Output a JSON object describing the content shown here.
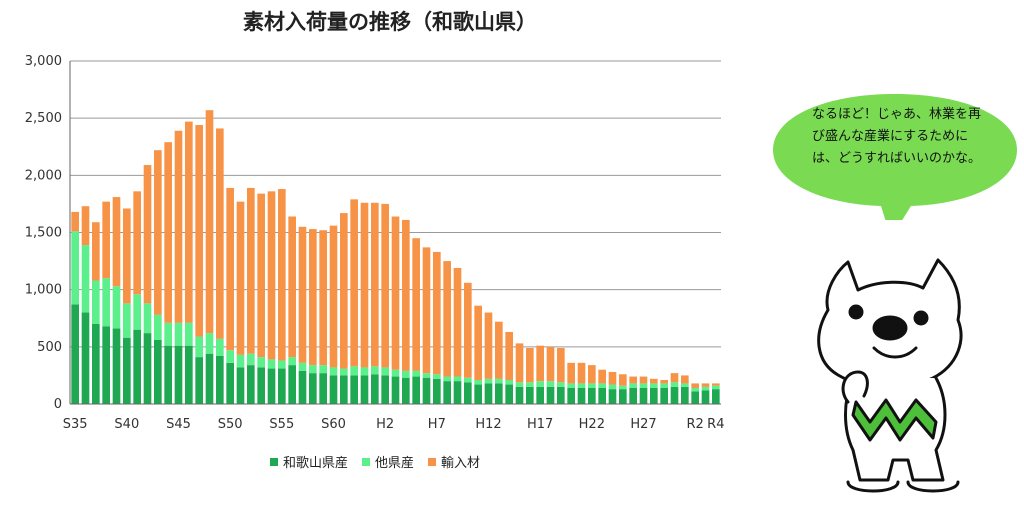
{
  "title": "素材入荷量の推移（和歌山県）",
  "colors": {
    "wakayama": "#1DA851",
    "other": "#5BF08C",
    "import": "#F79347",
    "bubble": "#7ADB53"
  },
  "speech": "なるほど！じゃあ、林業を再び盛んな産業にするためには、どうすればいいのかな。",
  "chart_data": {
    "type": "bar",
    "stacked": true,
    "title": "素材入荷量の推移（和歌山県）",
    "xlabel": "",
    "ylabel": "",
    "ylim": [
      0,
      3000
    ],
    "yticks": [
      0,
      500,
      1000,
      1500,
      2000,
      2500,
      3000
    ],
    "ytick_labels": [
      "0",
      "500",
      "1,000",
      "1,500",
      "2,000",
      "2,500",
      "3,000"
    ],
    "grid": true,
    "legend_position": "bottom",
    "categories": [
      "S35",
      "S36",
      "S37",
      "S38",
      "S39",
      "S40",
      "S41",
      "S42",
      "S43",
      "S44",
      "S45",
      "S46",
      "S47",
      "S48",
      "S49",
      "S50",
      "S51",
      "S52",
      "S53",
      "S54",
      "S55",
      "S56",
      "S57",
      "S58",
      "S59",
      "S60",
      "S61",
      "S62",
      "S63",
      "H1",
      "H2",
      "H3",
      "H4",
      "H5",
      "H6",
      "H7",
      "H8",
      "H9",
      "H10",
      "H11",
      "H12",
      "H13",
      "H14",
      "H15",
      "H16",
      "H17",
      "H18",
      "H19",
      "H20",
      "H21",
      "H22",
      "H23",
      "H24",
      "H25",
      "H26",
      "H27",
      "H28",
      "H29",
      "H30",
      "R1",
      "R2",
      "R3",
      "R4"
    ],
    "xtick_labels": [
      "S35",
      "S40",
      "S45",
      "S50",
      "S55",
      "S60",
      "H2",
      "H7",
      "H12",
      "H17",
      "H22",
      "H27",
      "R2",
      "R4"
    ],
    "xtick_indices": [
      0,
      5,
      10,
      15,
      20,
      25,
      30,
      35,
      40,
      45,
      50,
      55,
      60,
      62
    ],
    "series": [
      {
        "name": "和歌山県産",
        "values": [
          870,
          800,
          700,
          680,
          660,
          580,
          650,
          620,
          560,
          510,
          510,
          510,
          410,
          440,
          420,
          360,
          320,
          340,
          320,
          310,
          310,
          340,
          290,
          270,
          270,
          250,
          250,
          250,
          250,
          260,
          250,
          240,
          230,
          240,
          230,
          220,
          200,
          200,
          190,
          170,
          180,
          180,
          170,
          150,
          150,
          150,
          150,
          150,
          140,
          140,
          140,
          140,
          130,
          130,
          140,
          140,
          140,
          140,
          150,
          150,
          110,
          120,
          130
        ]
      },
      {
        "name": "他県産",
        "values": [
          640,
          590,
          380,
          420,
          370,
          300,
          310,
          260,
          220,
          200,
          200,
          200,
          180,
          180,
          150,
          110,
          110,
          100,
          90,
          80,
          70,
          70,
          70,
          70,
          70,
          70,
          60,
          80,
          70,
          70,
          70,
          60,
          60,
          50,
          40,
          40,
          40,
          40,
          40,
          40,
          40,
          40,
          40,
          40,
          40,
          50,
          50,
          40,
          40,
          40,
          40,
          40,
          40,
          30,
          40,
          40,
          40,
          40,
          40,
          30,
          30,
          30,
          30
        ]
      },
      {
        "name": "輸入材",
        "values": [
          170,
          340,
          510,
          670,
          780,
          830,
          900,
          1210,
          1440,
          1580,
          1680,
          1760,
          1850,
          1950,
          1840,
          1420,
          1340,
          1450,
          1430,
          1470,
          1500,
          1230,
          1190,
          1190,
          1180,
          1240,
          1360,
          1460,
          1440,
          1430,
          1430,
          1340,
          1320,
          1160,
          1100,
          1070,
          1010,
          950,
          830,
          650,
          580,
          500,
          420,
          340,
          300,
          310,
          300,
          300,
          180,
          180,
          160,
          120,
          110,
          100,
          60,
          60,
          40,
          30,
          80,
          70,
          40,
          30,
          20
        ]
      }
    ]
  }
}
